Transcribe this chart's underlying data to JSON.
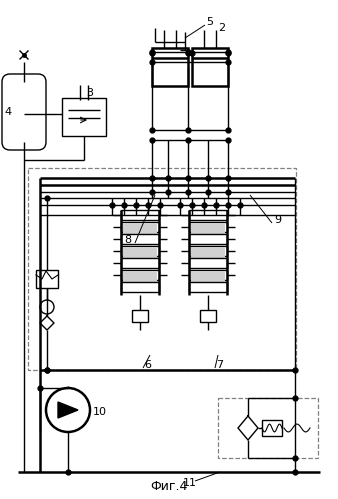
{
  "title": "Фиг.4",
  "bg": "#ffffff",
  "lw": 1.0,
  "lw2": 1.8
}
